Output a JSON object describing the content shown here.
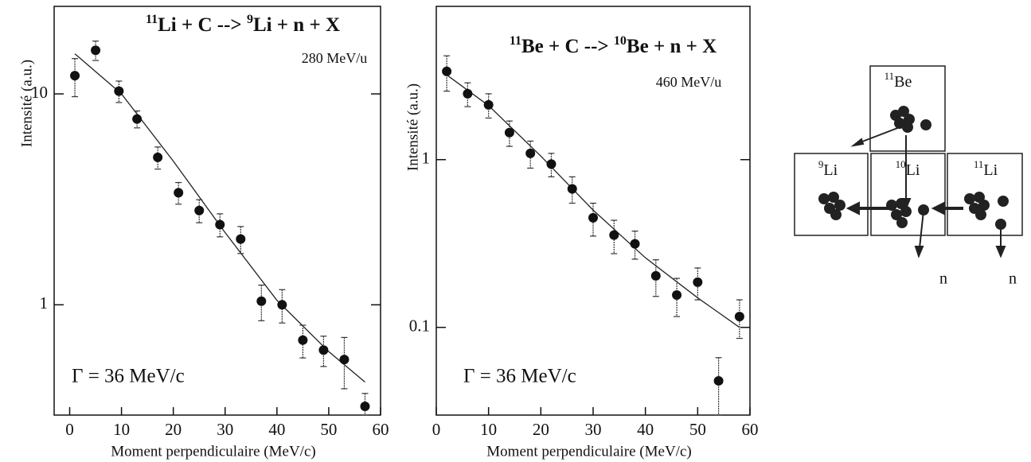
{
  "chart_data": [
    {
      "type": "scatter",
      "title": [
        "11",
        "Li + C --> ",
        "9",
        "Li + n + X"
      ],
      "title_superscript": [
        true,
        false,
        true,
        false
      ],
      "annotations": [
        "280 MeV/u",
        "Γ = 36 MeV/c"
      ],
      "x_label": "Moment perpendiculaire (MeV/c)",
      "y_label": "Intensité (a.u.)",
      "x": [
        1,
        5,
        9.5,
        13,
        17,
        21,
        25,
        29,
        33,
        37,
        41,
        45,
        49,
        53,
        57
      ],
      "values": [
        12.2,
        16.1,
        10.3,
        7.6,
        5.0,
        3.4,
        2.8,
        2.4,
        2.05,
        1.04,
        1.0,
        0.68,
        0.61,
        0.55,
        0.33
      ],
      "errors": [
        2.5,
        1.7,
        1.2,
        0.7,
        0.6,
        0.4,
        0.35,
        0.3,
        0.3,
        0.2,
        0.18,
        0.12,
        0.1,
        0.15,
        0.05
      ],
      "fit_x": [
        1,
        10,
        20,
        30,
        40,
        50,
        57
      ],
      "fit_values": [
        15.5,
        10,
        4.8,
        2.2,
        1.05,
        0.6,
        0.43
      ],
      "color": "#111",
      "log_y": true,
      "xlim": [
        -3,
        60
      ],
      "xticks": [
        0,
        10,
        20,
        30,
        40,
        50,
        60
      ],
      "ylim": [
        0.3,
        26
      ],
      "yticks": [
        1,
        10
      ]
    },
    {
      "type": "scatter",
      "title": [
        "11",
        "Be + C --> ",
        "10",
        "Be + n + X"
      ],
      "title_superscript": [
        true,
        false,
        true,
        false
      ],
      "annotations": [
        "460 MeV/u",
        "Γ = 36 MeV/c"
      ],
      "x_label": "Moment perpendiculaire (MeV/c)",
      "y_label": "Intensité (a.u.)",
      "x": [
        2,
        6,
        10,
        14,
        18,
        22,
        26,
        30,
        34,
        38,
        42,
        46,
        50,
        54,
        58
      ],
      "values": [
        3.36,
        2.47,
        2.12,
        1.45,
        1.09,
        0.94,
        0.67,
        0.45,
        0.355,
        0.315,
        0.203,
        0.156,
        0.186,
        0.048,
        0.116
      ],
      "errors": [
        0.8,
        0.4,
        0.35,
        0.25,
        0.2,
        0.15,
        0.12,
        0.1,
        0.08,
        0.06,
        0.05,
        0.04,
        0.04,
        0.018,
        0.03
      ],
      "fit_x": [
        2,
        10,
        20,
        30,
        40,
        50,
        58
      ],
      "fit_values": [
        3.2,
        2.1,
        1.05,
        0.5,
        0.26,
        0.15,
        0.1
      ],
      "color": "#111",
      "log_y": true,
      "xlim": [
        0,
        60
      ],
      "xticks": [
        0,
        10,
        20,
        30,
        40,
        50,
        60
      ],
      "ylim": [
        0.03,
        8.2
      ],
      "yticks": [
        {
          "value": 0.1,
          "label": "0.1"
        },
        1
      ]
    }
  ],
  "diagram": {
    "nuclei": [
      {
        "mass": "11",
        "element": "Be"
      },
      {
        "mass": "9",
        "element": "Li"
      },
      {
        "mass": "10",
        "element": "Li"
      },
      {
        "mass": "11",
        "element": "Li"
      }
    ],
    "neutrons": [
      "n",
      "n"
    ]
  }
}
